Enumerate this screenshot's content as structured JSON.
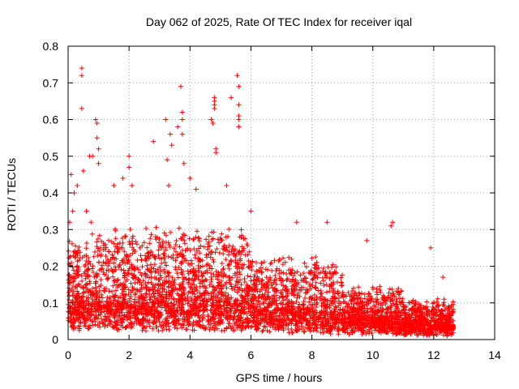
{
  "chart_data": {
    "type": "scatter",
    "title": "Day 062 of 2025, Rate Of TEC Index for receiver iqal",
    "xlabel": "GPS time / hours",
    "ylabel": "ROTI / TECUs",
    "xlim": [
      0,
      14
    ],
    "ylim": [
      0,
      0.8
    ],
    "x_ticks": [
      0,
      2,
      4,
      6,
      8,
      10,
      12,
      14
    ],
    "x_tick_labels": [
      "0",
      "2",
      "4",
      "6",
      "8",
      "10",
      "12",
      "14"
    ],
    "y_ticks": [
      0,
      0.1,
      0.2,
      0.3,
      0.4,
      0.5,
      0.6,
      0.7,
      0.8
    ],
    "y_tick_labels": [
      "0",
      "0.1",
      "0.2",
      "0.3",
      "0.4",
      "0.5",
      "0.6",
      "0.7",
      "0.8"
    ],
    "grid": true,
    "marker": "+",
    "color": "#ff0000",
    "series": [
      {
        "name": "ROTI",
        "x_range": [
          0,
          12.65
        ],
        "points": [
          [
            0.05,
            0.32
          ],
          [
            0.1,
            0.45
          ],
          [
            0.15,
            0.35
          ],
          [
            0.2,
            0.4
          ],
          [
            0.3,
            0.42
          ],
          [
            0.45,
            0.74
          ],
          [
            0.45,
            0.72
          ],
          [
            0.45,
            0.63
          ],
          [
            0.5,
            0.46
          ],
          [
            0.6,
            0.35
          ],
          [
            0.7,
            0.5
          ],
          [
            0.75,
            0.32
          ],
          [
            0.8,
            0.5
          ],
          [
            0.9,
            0.6
          ],
          [
            0.95,
            0.59
          ],
          [
            0.95,
            0.55
          ],
          [
            1.0,
            0.52
          ],
          [
            1.0,
            0.48
          ],
          [
            1.5,
            0.42
          ],
          [
            1.8,
            0.44
          ],
          [
            2.0,
            0.5
          ],
          [
            2.0,
            0.47
          ],
          [
            2.1,
            0.42
          ],
          [
            2.8,
            0.54
          ],
          [
            3.2,
            0.6
          ],
          [
            3.25,
            0.49
          ],
          [
            3.3,
            0.42
          ],
          [
            3.35,
            0.56
          ],
          [
            3.4,
            0.53
          ],
          [
            3.6,
            0.58
          ],
          [
            3.7,
            0.69
          ],
          [
            3.75,
            0.62
          ],
          [
            3.75,
            0.6
          ],
          [
            3.75,
            0.56
          ],
          [
            3.8,
            0.48
          ],
          [
            4.0,
            0.44
          ],
          [
            4.2,
            0.41
          ],
          [
            4.7,
            0.6
          ],
          [
            4.8,
            0.66
          ],
          [
            4.8,
            0.65
          ],
          [
            4.8,
            0.64
          ],
          [
            4.8,
            0.63
          ],
          [
            4.75,
            0.59
          ],
          [
            4.85,
            0.52
          ],
          [
            4.85,
            0.51
          ],
          [
            5.2,
            0.42
          ],
          [
            5.35,
            0.66
          ],
          [
            5.55,
            0.72
          ],
          [
            5.6,
            0.69
          ],
          [
            5.6,
            0.64
          ],
          [
            5.6,
            0.61
          ],
          [
            5.6,
            0.6
          ],
          [
            5.6,
            0.58
          ],
          [
            6.0,
            0.35
          ],
          [
            7.5,
            0.32
          ],
          [
            8.5,
            0.32
          ],
          [
            9.8,
            0.27
          ],
          [
            10.6,
            0.31
          ],
          [
            10.65,
            0.32
          ],
          [
            11.9,
            0.25
          ],
          [
            12.3,
            0.17
          ]
        ]
      }
    ]
  }
}
